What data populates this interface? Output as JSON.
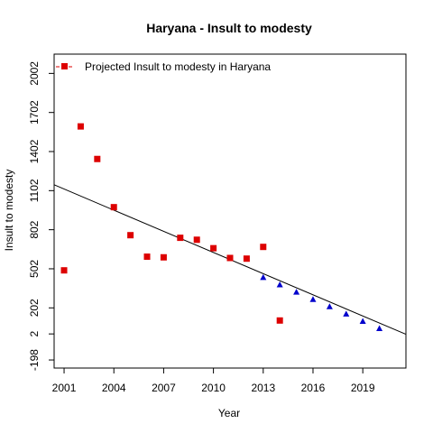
{
  "chart_data": {
    "type": "scatter",
    "title": "Haryana  -  Insult to modesty",
    "xlabel": "Year",
    "ylabel": "Insult to modesty",
    "xlim": [
      2000.4,
      2021.6
    ],
    "ylim": [
      -260,
      2150
    ],
    "xticks": [
      2001,
      2004,
      2007,
      2010,
      2013,
      2016,
      2019
    ],
    "yticks": [
      -198,
      2,
      202,
      502,
      802,
      1102,
      1402,
      1702,
      2002
    ],
    "legend": {
      "position": "top-left",
      "label": "Projected  Insult to modesty  in  Haryana"
    },
    "series": [
      {
        "marker": "square",
        "color": "#dd0000",
        "x": [
          2001,
          2002,
          2003,
          2004,
          2005,
          2006,
          2007,
          2008,
          2009,
          2010,
          2011,
          2012,
          2013,
          2014
        ],
        "y": [
          490,
          1595,
          1345,
          975,
          760,
          595,
          590,
          740,
          725,
          660,
          585,
          580,
          670,
          105
        ]
      },
      {
        "marker": "triangle",
        "color": "#0000cc",
        "x": [
          2013,
          2014,
          2015,
          2016,
          2017,
          2018,
          2019,
          2020
        ],
        "y": [
          433,
          377,
          321,
          265,
          209,
          153,
          97,
          41
        ]
      }
    ],
    "trendline": {
      "x": [
        2000.4,
        2021.6
      ],
      "y": [
        1147,
        -1
      ]
    }
  }
}
